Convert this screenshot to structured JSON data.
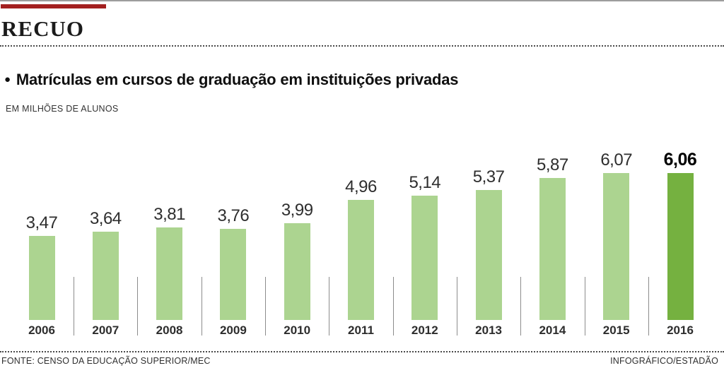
{
  "header": {
    "title": "RECUO",
    "kicker_color": "#a32020"
  },
  "subtitle": {
    "bullet": "●",
    "text": "Matrículas em cursos de graduação em instituições privadas"
  },
  "unit_label": "EM MILHÕES DE ALUNOS",
  "footer": {
    "source": "FONTE: CENSO DA EDUCAÇÃO SUPERIOR/MEC",
    "credit": "INFOGRÁFICO/ESTADÃO"
  },
  "chart_data": {
    "type": "bar",
    "title": "Matrículas em cursos de graduação em instituições privadas",
    "ylabel": "EM MILHÕES DE ALUNOS",
    "xlabel": "",
    "categories": [
      "2006",
      "2007",
      "2008",
      "2009",
      "2010",
      "2011",
      "2012",
      "2013",
      "2014",
      "2015",
      "2016"
    ],
    "values": [
      3.47,
      3.64,
      3.81,
      3.76,
      3.99,
      4.96,
      5.14,
      5.37,
      5.87,
      6.07,
      6.06
    ],
    "value_labels": [
      "3,47",
      "3,64",
      "3,81",
      "3,76",
      "3,99",
      "4,96",
      "5,14",
      "5,37",
      "5,87",
      "6,07",
      "6,06"
    ],
    "highlight_index": 10,
    "bar_color": "#acd490",
    "highlight_color": "#75b140",
    "ylim": [
      0,
      6.5
    ],
    "grid": false,
    "legend": false
  }
}
